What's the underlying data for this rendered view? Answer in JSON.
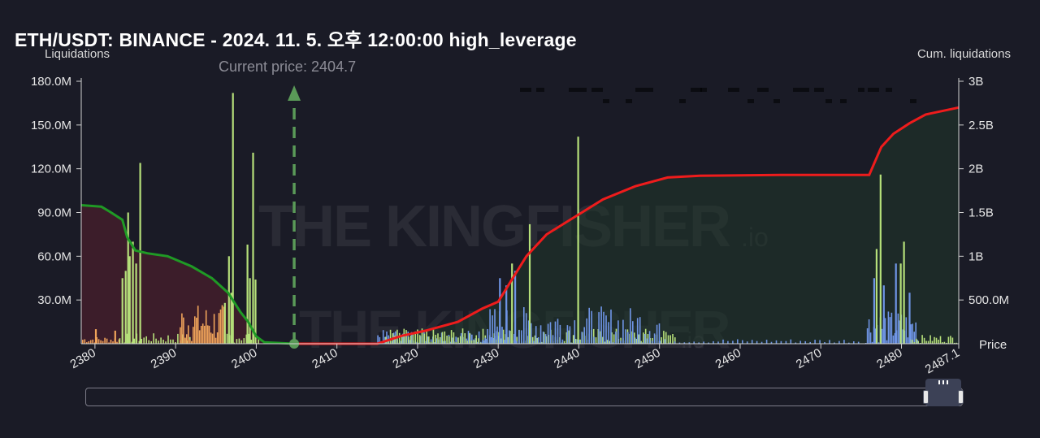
{
  "header": {
    "title": "ETH/USDT: BINANCE - 2024. 11. 5. 오후 12:00:00 high_leverage"
  },
  "chart_data": {
    "type": "bar",
    "title": "ETH/USDT: BINANCE - 2024. 11. 5. 오후 12:00:00 high_leverage",
    "ylabel": "Liquidations",
    "y2label": "Cum. liquidations",
    "xlabel": "Price",
    "xlim": [
      2378.3,
      2487.1
    ],
    "ylim": [
      0,
      180000000
    ],
    "y2lim": [
      0,
      3000000000
    ],
    "xticks": [
      "2380",
      "2390",
      "2400",
      "2410",
      "2420",
      "2430",
      "2440",
      "2450",
      "2460",
      "2470",
      "2480",
      "2487.1"
    ],
    "yticks": [
      "30.0M",
      "60.0M",
      "90.0M",
      "120.0M",
      "150.0M",
      "180.0M"
    ],
    "y2ticks": [
      "500.0M",
      "1B",
      "1.5B",
      "2B",
      "2.5B",
      "3B"
    ],
    "current_price": 2404.7,
    "current_price_label": "Current price: 2404.7",
    "watermark": "THE KINGFISHER.io",
    "colors": {
      "short_bars": "#f0a35a",
      "long_bars": "#6f95e6",
      "high_leverage": "#b6e07a",
      "cum_below": "#1f9a25",
      "cum_above": "#ee1c1c",
      "current_price": "#5a9a58"
    },
    "major_bars": [
      {
        "x": 2380.1,
        "y": 10000000,
        "c": "short"
      },
      {
        "x": 2382.5,
        "y": 9000000,
        "c": "short"
      },
      {
        "x": 2383.4,
        "y": 45000000,
        "c": "hl"
      },
      {
        "x": 2383.8,
        "y": 50000000,
        "c": "hl"
      },
      {
        "x": 2384.1,
        "y": 90000000,
        "c": "hl"
      },
      {
        "x": 2384.3,
        "y": 60000000,
        "c": "hl"
      },
      {
        "x": 2384.7,
        "y": 70000000,
        "c": "hl"
      },
      {
        "x": 2385.1,
        "y": 55000000,
        "c": "hl"
      },
      {
        "x": 2385.6,
        "y": 124000000,
        "c": "hl"
      },
      {
        "x": 2396.1,
        "y": 28000000,
        "c": "hl"
      },
      {
        "x": 2396.6,
        "y": 60000000,
        "c": "hl"
      },
      {
        "x": 2396.9,
        "y": 35000000,
        "c": "hl"
      },
      {
        "x": 2397.1,
        "y": 172000000,
        "c": "hl"
      },
      {
        "x": 2398.9,
        "y": 68000000,
        "c": "hl"
      },
      {
        "x": 2399.2,
        "y": 45000000,
        "c": "hl"
      },
      {
        "x": 2399.6,
        "y": 131000000,
        "c": "hl"
      },
      {
        "x": 2399.9,
        "y": 44000000,
        "c": "hl"
      },
      {
        "x": 2430.2,
        "y": 45000000,
        "c": "long"
      },
      {
        "x": 2431.0,
        "y": 40000000,
        "c": "long"
      },
      {
        "x": 2431.7,
        "y": 55000000,
        "c": "hl"
      },
      {
        "x": 2432.1,
        "y": 50000000,
        "c": "long"
      },
      {
        "x": 2433.9,
        "y": 82000000,
        "c": "hl"
      },
      {
        "x": 2439.9,
        "y": 142000000,
        "c": "hl"
      },
      {
        "x": 2476.6,
        "y": 45000000,
        "c": "long"
      },
      {
        "x": 2476.9,
        "y": 65000000,
        "c": "hl"
      },
      {
        "x": 2477.4,
        "y": 116000000,
        "c": "hl"
      },
      {
        "x": 2477.8,
        "y": 40000000,
        "c": "long"
      },
      {
        "x": 2479.3,
        "y": 55000000,
        "c": "long"
      },
      {
        "x": 2479.9,
        "y": 55000000,
        "c": "hl"
      },
      {
        "x": 2480.3,
        "y": 70000000,
        "c": "hl"
      },
      {
        "x": 2481.0,
        "y": 35000000,
        "c": "long"
      }
    ],
    "cumulative_below": [
      [
        2378.3,
        95000000
      ],
      [
        2380.8,
        94000000
      ],
      [
        2382.0,
        90000000
      ],
      [
        2383.4,
        85000000
      ],
      [
        2384.0,
        73000000
      ],
      [
        2385.0,
        64000000
      ],
      [
        2386.5,
        62000000
      ],
      [
        2389.0,
        60000000
      ],
      [
        2392.0,
        53000000
      ],
      [
        2394.5,
        45000000
      ],
      [
        2396.5,
        35000000
      ],
      [
        2398.0,
        22000000
      ],
      [
        2399.0,
        15000000
      ],
      [
        2400.0,
        5000000
      ],
      [
        2401.0,
        1000000
      ],
      [
        2404.7,
        0
      ]
    ],
    "cumulative_above": [
      [
        2404.7,
        0
      ],
      [
        2415.0,
        0
      ],
      [
        2418.0,
        90000000
      ],
      [
        2421.0,
        150000000
      ],
      [
        2425.0,
        250000000
      ],
      [
        2428.0,
        400000000
      ],
      [
        2430.0,
        480000000
      ],
      [
        2431.8,
        750000000
      ],
      [
        2433.5,
        1000000000
      ],
      [
        2436.0,
        1250000000
      ],
      [
        2439.5,
        1450000000
      ],
      [
        2443.0,
        1650000000
      ],
      [
        2447.0,
        1800000000
      ],
      [
        2451.0,
        1900000000
      ],
      [
        2455.0,
        1920000000
      ],
      [
        2465.0,
        1930000000
      ],
      [
        2476.0,
        1930000000
      ],
      [
        2477.5,
        2250000000
      ],
      [
        2479.0,
        2400000000
      ],
      [
        2481.0,
        2520000000
      ],
      [
        2483.0,
        2620000000
      ],
      [
        2487.1,
        2700000000
      ]
    ]
  }
}
